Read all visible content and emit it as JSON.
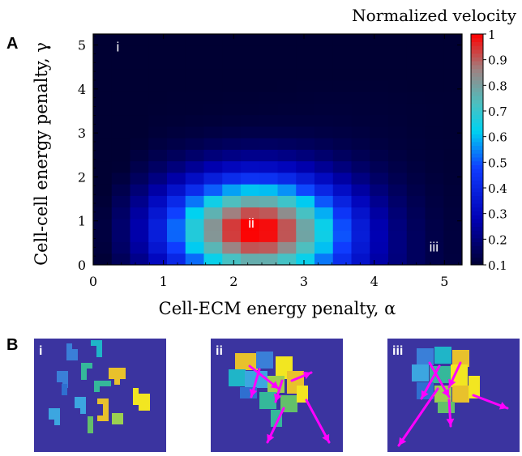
{
  "panels": {
    "a_label": "A",
    "b_label": "B",
    "b_items": [
      "i",
      "ii",
      "iii"
    ]
  },
  "chart_data": {
    "type": "heatmap",
    "title": "",
    "colorbar_label": "Normalized velocity",
    "xlabel": "Cell-ECM energy penalty, α",
    "ylabel": "Cell-cell energy penalty, γ",
    "xlim": [
      0,
      5.25
    ],
    "ylim": [
      0,
      5.25
    ],
    "x_ticks": [
      "0",
      "1",
      "2",
      "3",
      "4",
      "5"
    ],
    "y_ticks": [
      "0",
      "1",
      "2",
      "3",
      "4",
      "5"
    ],
    "colorbar_range": [
      0.1,
      1.0
    ],
    "colorbar_ticks": [
      "1",
      "0.9",
      "0.8",
      "0.7",
      "0.6",
      "0.5",
      "0.4",
      "0.3",
      "0.2",
      "0.1"
    ],
    "grid": "20x20 cells",
    "colormap": [
      "#000033",
      "#0000b4",
      "#0f3cff",
      "#00d2f0",
      "#4cc0c0",
      "#a08080",
      "#ff0000"
    ],
    "peak": {
      "alpha": 2.3,
      "gamma": 0.8,
      "value": 1.0
    },
    "annotations": [
      {
        "text": "i",
        "alpha": 0.35,
        "gamma": 4.85
      },
      {
        "text": "ii",
        "alpha": 2.25,
        "gamma": 0.85
      },
      {
        "text": "iii",
        "alpha": 4.85,
        "gamma": 0.3
      }
    ]
  },
  "colors": {
    "panel_bg": "#3b34a0",
    "arrow": "#ff00ff",
    "text": "#000000"
  }
}
